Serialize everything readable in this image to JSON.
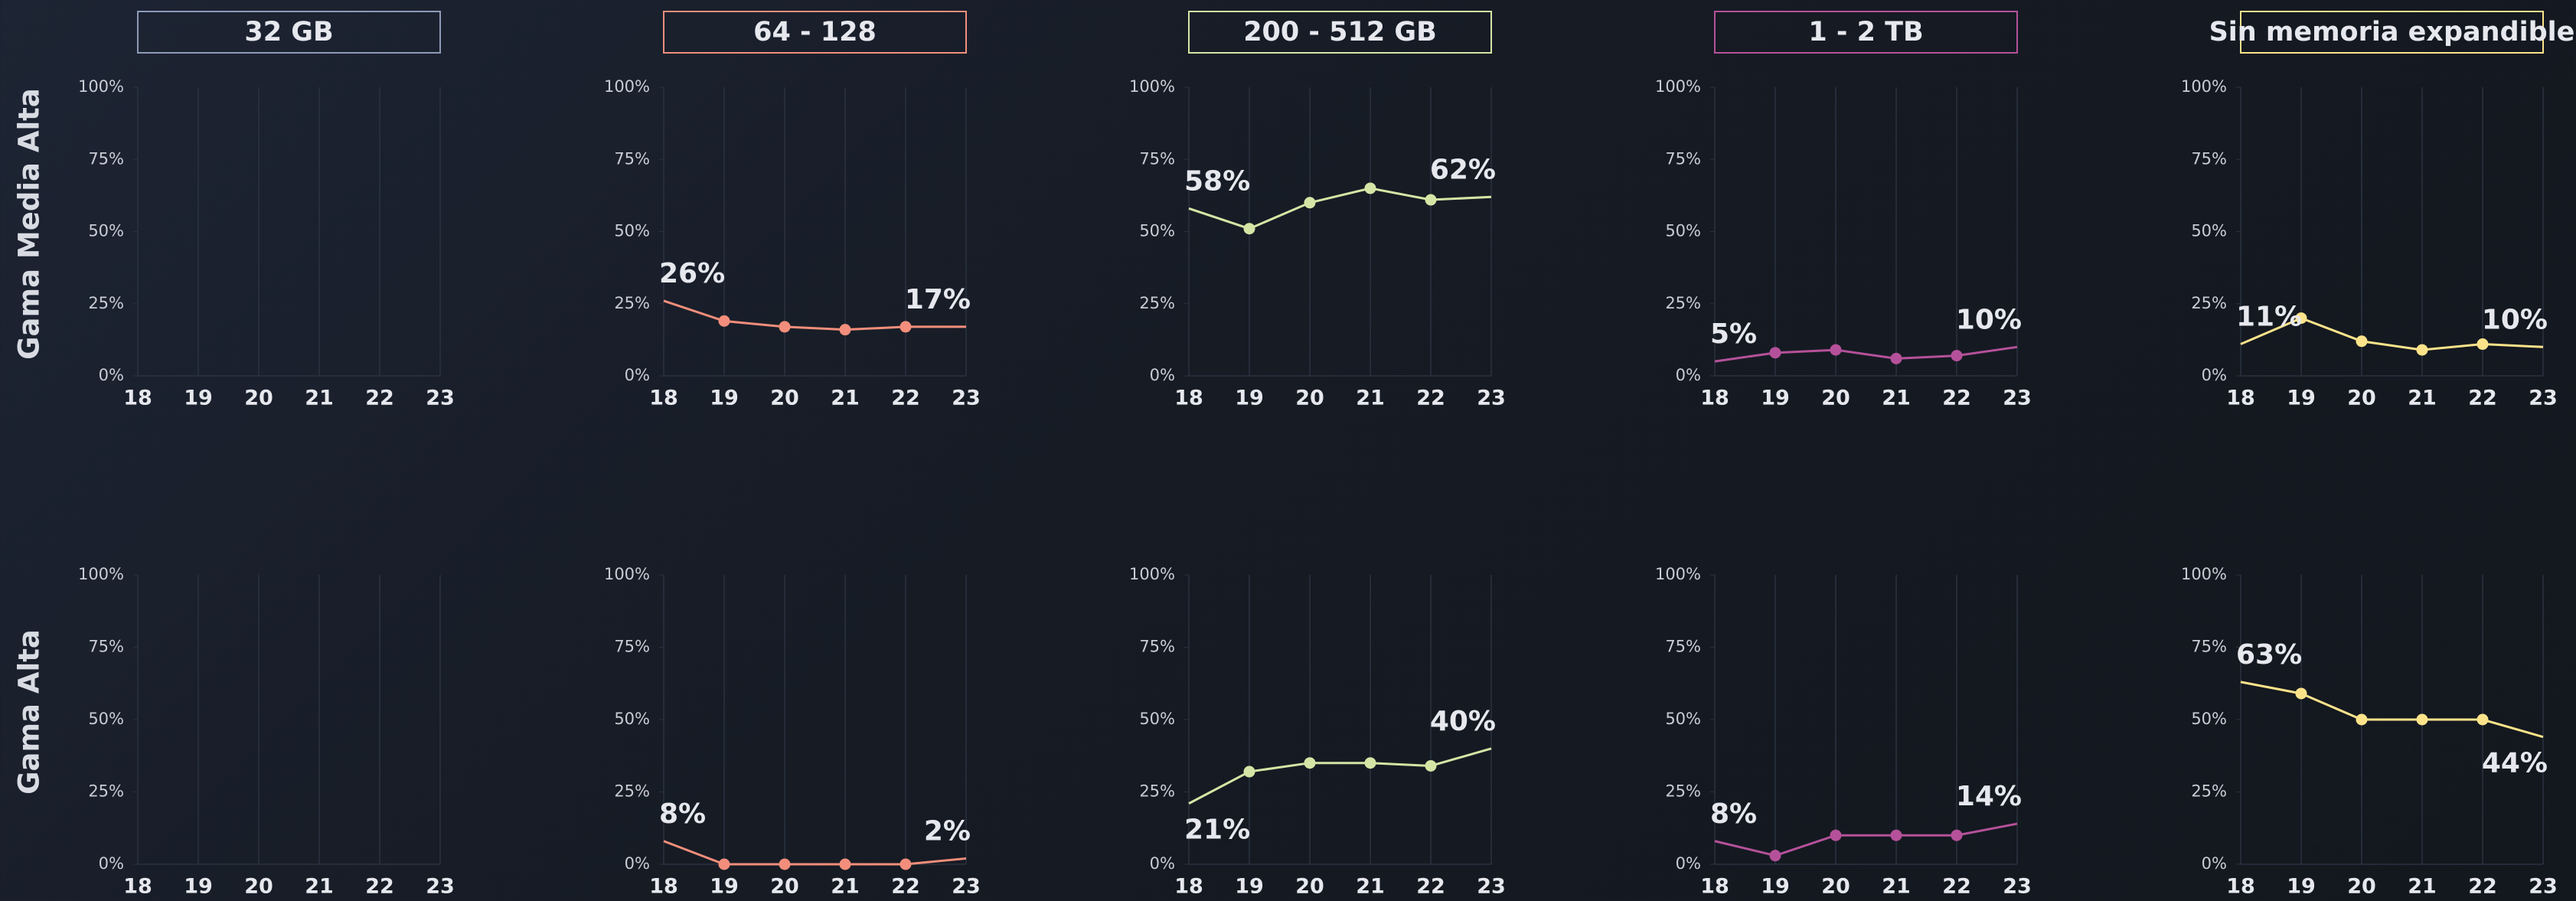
{
  "column_headers": [
    {
      "text": "32 GB",
      "color": "#8d9bb8"
    },
    {
      "text": "64 - 128",
      "color": "#f28e7b"
    },
    {
      "text": "200 - 512 GB",
      "color": "#d4e6a5"
    },
    {
      "text": "1 - 2 TB",
      "color": "#b5519a"
    },
    {
      "text": "Sin memoria expandible",
      "color": "#fce38a"
    }
  ],
  "row_labels": [
    "Gama Media Alta",
    "Gama Alta"
  ],
  "chart_data": [
    {
      "type": "line",
      "x": [
        18,
        19,
        20,
        21,
        22,
        23
      ],
      "xlim": [
        18,
        23
      ],
      "xticks": [
        18,
        19,
        20,
        21,
        22,
        23
      ],
      "ylim": [
        0,
        100
      ],
      "yticks": [
        {
          "value": 0,
          "label": "0%"
        },
        {
          "value": 25,
          "label": "25%"
        },
        {
          "value": 50,
          "label": "50%"
        },
        {
          "value": 75,
          "label": "75%"
        },
        {
          "value": 100,
          "label": "100%"
        }
      ],
      "series": []
    },
    {
      "type": "line",
      "x": [
        18,
        19,
        20,
        21,
        22,
        23
      ],
      "xlim": [
        18,
        23
      ],
      "xticks": [
        18,
        19,
        20,
        21,
        22,
        23
      ],
      "ylim": [
        0,
        100
      ],
      "yticks": [
        {
          "value": 0,
          "label": "0%"
        },
        {
          "value": 25,
          "label": "25%"
        },
        {
          "value": 50,
          "label": "50%"
        },
        {
          "value": 75,
          "label": "75%"
        },
        {
          "value": 100,
          "label": "100%"
        }
      ],
      "series": [
        {
          "color": "#f28e7b",
          "values": [
            26,
            19,
            17,
            16,
            17,
            17
          ],
          "value_labels": [
            "26%",
            null,
            null,
            null,
            null,
            "17%"
          ]
        }
      ]
    },
    {
      "type": "line",
      "x": [
        18,
        19,
        20,
        21,
        22,
        23
      ],
      "xlim": [
        18,
        23
      ],
      "xticks": [
        18,
        19,
        20,
        21,
        22,
        23
      ],
      "ylim": [
        0,
        100
      ],
      "yticks": [
        {
          "value": 0,
          "label": "0%"
        },
        {
          "value": 25,
          "label": "25%"
        },
        {
          "value": 50,
          "label": "50%"
        },
        {
          "value": 75,
          "label": "75%"
        },
        {
          "value": 100,
          "label": "100%"
        }
      ],
      "series": [
        {
          "color": "#d4e6a5",
          "values": [
            58,
            51,
            60,
            65,
            61,
            62
          ],
          "value_labels": [
            "58%",
            null,
            null,
            null,
            null,
            "62%"
          ]
        }
      ]
    },
    {
      "type": "line",
      "x": [
        18,
        19,
        20,
        21,
        22,
        23
      ],
      "xlim": [
        18,
        23
      ],
      "xticks": [
        18,
        19,
        20,
        21,
        22,
        23
      ],
      "ylim": [
        0,
        100
      ],
      "yticks": [
        {
          "value": 0,
          "label": "0%"
        },
        {
          "value": 25,
          "label": "25%"
        },
        {
          "value": 50,
          "label": "50%"
        },
        {
          "value": 75,
          "label": "75%"
        },
        {
          "value": 100,
          "label": "100%"
        }
      ],
      "series": [
        {
          "color": "#b5519a",
          "values": [
            5,
            8,
            9,
            6,
            7,
            10
          ],
          "value_labels": [
            "5%",
            null,
            null,
            null,
            null,
            "10%"
          ]
        }
      ]
    },
    {
      "type": "line",
      "x": [
        18,
        19,
        20,
        21,
        22,
        23
      ],
      "xlim": [
        18,
        23
      ],
      "xticks": [
        18,
        19,
        20,
        21,
        22,
        23
      ],
      "ylim": [
        0,
        100
      ],
      "yticks": [
        {
          "value": 0,
          "label": "0%"
        },
        {
          "value": 25,
          "label": "25%"
        },
        {
          "value": 50,
          "label": "50%"
        },
        {
          "value": 75,
          "label": "75%"
        },
        {
          "value": 100,
          "label": "100%"
        }
      ],
      "series": [
        {
          "color": "#fce38a",
          "values": [
            11,
            20,
            12,
            9,
            11,
            10
          ],
          "value_labels": [
            "11%",
            null,
            null,
            null,
            null,
            "10%"
          ]
        }
      ]
    },
    {
      "type": "line",
      "x": [
        18,
        19,
        20,
        21,
        22,
        23
      ],
      "xlim": [
        18,
        23
      ],
      "xticks": [
        18,
        19,
        20,
        21,
        22,
        23
      ],
      "ylim": [
        0,
        100
      ],
      "yticks": [
        {
          "value": 0,
          "label": "0%"
        },
        {
          "value": 25,
          "label": "25%"
        },
        {
          "value": 50,
          "label": "50%"
        },
        {
          "value": 75,
          "label": "75%"
        },
        {
          "value": 100,
          "label": "100%"
        }
      ],
      "series": []
    },
    {
      "type": "line",
      "x": [
        18,
        19,
        20,
        21,
        22,
        23
      ],
      "xlim": [
        18,
        23
      ],
      "xticks": [
        18,
        19,
        20,
        21,
        22,
        23
      ],
      "ylim": [
        0,
        100
      ],
      "yticks": [
        {
          "value": 0,
          "label": "0%"
        },
        {
          "value": 25,
          "label": "25%"
        },
        {
          "value": 50,
          "label": "50%"
        },
        {
          "value": 75,
          "label": "75%"
        },
        {
          "value": 100,
          "label": "100%"
        }
      ],
      "series": [
        {
          "color": "#f28e7b",
          "values": [
            8,
            0,
            0,
            0,
            0,
            2
          ],
          "value_labels": [
            "8%",
            null,
            null,
            null,
            null,
            "2%"
          ]
        }
      ]
    },
    {
      "type": "line",
      "x": [
        18,
        19,
        20,
        21,
        22,
        23
      ],
      "xlim": [
        18,
        23
      ],
      "xticks": [
        18,
        19,
        20,
        21,
        22,
        23
      ],
      "ylim": [
        0,
        100
      ],
      "yticks": [
        {
          "value": 0,
          "label": "0%"
        },
        {
          "value": 25,
          "label": "25%"
        },
        {
          "value": 50,
          "label": "50%"
        },
        {
          "value": 75,
          "label": "75%"
        },
        {
          "value": 100,
          "label": "100%"
        }
      ],
      "series": [
        {
          "color": "#d4e6a5",
          "values": [
            21,
            32,
            35,
            35,
            34,
            40
          ],
          "value_labels": [
            "21%",
            null,
            null,
            null,
            null,
            "40%"
          ]
        }
      ]
    },
    {
      "type": "line",
      "x": [
        18,
        19,
        20,
        21,
        22,
        23
      ],
      "xlim": [
        18,
        23
      ],
      "xticks": [
        18,
        19,
        20,
        21,
        22,
        23
      ],
      "ylim": [
        0,
        100
      ],
      "yticks": [
        {
          "value": 0,
          "label": "0%"
        },
        {
          "value": 25,
          "label": "25%"
        },
        {
          "value": 50,
          "label": "50%"
        },
        {
          "value": 75,
          "label": "75%"
        },
        {
          "value": 100,
          "label": "100%"
        }
      ],
      "series": [
        {
          "color": "#b5519a",
          "values": [
            8,
            3,
            10,
            10,
            10,
            14
          ],
          "value_labels": [
            "8%",
            null,
            null,
            null,
            null,
            "14%"
          ]
        }
      ]
    },
    {
      "type": "line",
      "x": [
        18,
        19,
        20,
        21,
        22,
        23
      ],
      "xlim": [
        18,
        23
      ],
      "xticks": [
        18,
        19,
        20,
        21,
        22,
        23
      ],
      "ylim": [
        0,
        100
      ],
      "yticks": [
        {
          "value": 0,
          "label": "0%"
        },
        {
          "value": 25,
          "label": "25%"
        },
        {
          "value": 50,
          "label": "50%"
        },
        {
          "value": 75,
          "label": "75%"
        },
        {
          "value": 100,
          "label": "100%"
        }
      ],
      "series": [
        {
          "color": "#fce38a",
          "values": [
            63,
            59,
            50,
            50,
            50,
            44
          ],
          "value_labels": [
            "63%",
            null,
            null,
            null,
            null,
            "44%"
          ]
        }
      ]
    }
  ]
}
